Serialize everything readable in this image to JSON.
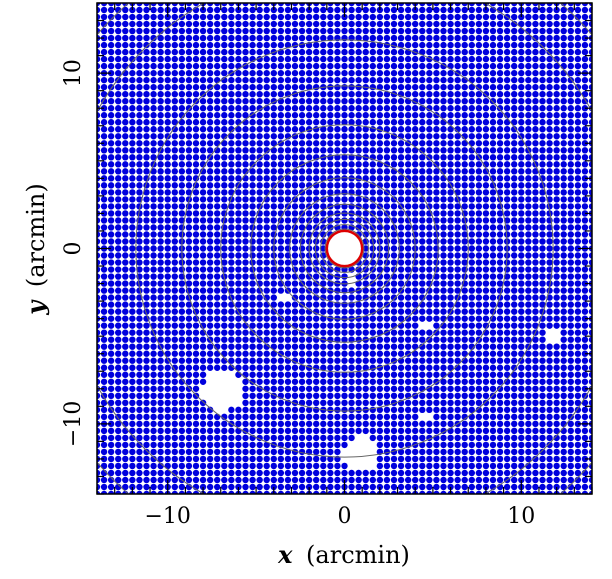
{
  "chart_data": {
    "type": "scatter",
    "xlabel_var": "x",
    "xlabel_unit": "(arcmin)",
    "ylabel_var": "y",
    "ylabel_unit": "(arcmin)",
    "xlim": [
      -14,
      14
    ],
    "ylim": [
      -14,
      14
    ],
    "xticks_major": [
      -10,
      0,
      10
    ],
    "yticks_major": [
      -10,
      0,
      10
    ],
    "x_tick_labels": [
      "−10",
      "0",
      "10"
    ],
    "y_tick_labels": [
      "−10",
      "0",
      "10"
    ],
    "minor_tick_step": 1,
    "grid_step_arcmin": 0.4,
    "grid_color": "#0000dd",
    "contour_color": "#666666",
    "contour_radii_arcmin": [
      0.9,
      1.1,
      1.35,
      1.65,
      2.0,
      2.5,
      3.1,
      4.0,
      5.3,
      7.0,
      9.2,
      11.8,
      16.0,
      18.5
    ],
    "central_mask": {
      "center": [
        0,
        0
      ],
      "radius_arcmin": 1.0,
      "color": "#dd0000"
    },
    "masked_regions": [
      {
        "center": [
          -6.9,
          -8.1
        ],
        "radius_arcmin": 1.2
      },
      {
        "center": [
          0.9,
          -11.7
        ],
        "radius_arcmin": 1.0
      },
      {
        "center": [
          11.9,
          -5.0
        ],
        "radius_arcmin": 0.45
      },
      {
        "center": [
          4.7,
          -4.4
        ],
        "radius_arcmin": 0.3
      },
      {
        "center": [
          -3.3,
          -2.8
        ],
        "radius_arcmin": 0.3
      },
      {
        "center": [
          4.7,
          -9.6
        ],
        "radius_arcmin": 0.3
      },
      {
        "center": [
          0.3,
          -1.8
        ],
        "radius_arcmin": 0.3
      }
    ]
  }
}
